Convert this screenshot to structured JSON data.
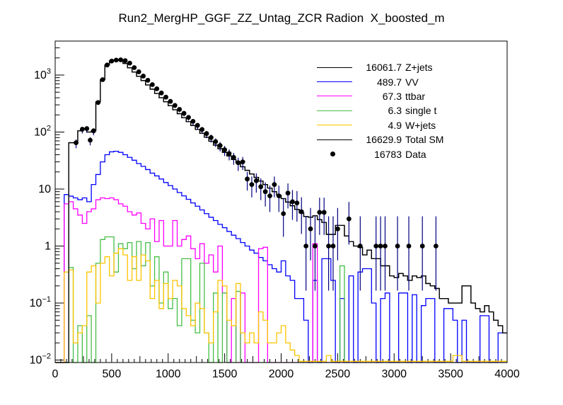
{
  "title": "Run2_MergHP_GGF_ZZ_Untag_ZCR Radion  X_boosted_m",
  "colors": {
    "zjets": "#000000",
    "vv": "#0000ff",
    "ttbar": "#ff00ff",
    "single_t": "#45bf45",
    "wjets": "#fcc400",
    "total_sm": "#000000",
    "data_marker": "#000000",
    "data_error_bar": "#000080",
    "frame": "#000000"
  },
  "chart_data": {
    "type": "bar",
    "subtype": "overlaid-step-histograms-log-y",
    "title": "Run2_MergHP_GGF_ZZ_Untag_ZCR Radion  X_boosted_m",
    "xlabel": "",
    "ylabel": "",
    "grid": false,
    "legend_position": "top-right-inside",
    "x_axis": {
      "min": 0,
      "max": 4000,
      "label_step": 500,
      "medium_tick_step": 250,
      "minor_tick_step": 50,
      "labels": [
        "0",
        "500",
        "1000",
        "1500",
        "2000",
        "2500",
        "3000",
        "3500",
        "4000"
      ]
    },
    "y_axis": {
      "scale": "log",
      "min": 0.009,
      "max": 4000,
      "tick_labels": [
        {
          "v": 1000,
          "base": "10",
          "exp": "3"
        },
        {
          "v": 100,
          "base": "10",
          "exp": "2"
        },
        {
          "v": 10,
          "base": "10",
          "exp": ""
        },
        {
          "v": 1,
          "base": "1",
          "exp": ""
        },
        {
          "v": 0.1,
          "base": "10",
          "exp": "−1"
        },
        {
          "v": 0.01,
          "base": "10",
          "exp": "−2"
        }
      ]
    },
    "bin_width": 40,
    "bin_start": 0,
    "series": [
      {
        "key": "zjets",
        "name": "Z+jets",
        "yield": "16061.7",
        "color": "#000000",
        "values": [
          0,
          0,
          0,
          65,
          65,
          105,
          115,
          100,
          105,
          340,
          830,
          1500,
          1780,
          1830,
          1820,
          1600,
          1340,
          1130,
          950,
          800,
          670,
          565,
          475,
          400,
          340,
          290,
          246,
          210,
          178,
          152,
          130,
          111,
          95,
          81,
          69,
          59,
          51,
          44,
          38,
          33,
          28.5,
          24.6,
          21.3,
          18.4,
          16,
          13.8,
          12,
          10.4,
          9,
          7.8,
          6.8,
          5.9,
          5.1,
          4.4,
          3.8,
          3.3,
          3.2,
          3.4,
          2.9,
          2.6,
          1.6,
          1.6,
          2.3,
          2.3,
          1.5,
          1.2,
          1.0,
          0.95,
          0.7,
          0.85,
          0.6,
          0.6,
          0.45,
          0.45,
          0.3,
          0.28,
          0.33,
          0.3,
          0.25,
          0.3,
          0.28,
          0.3,
          0.22,
          0.2,
          0.18,
          0.12,
          0.12,
          0.1,
          0.1,
          0.1,
          0.2,
          0.2,
          0.1,
          0.08,
          0.07,
          0.09,
          0.07,
          0.05,
          0.04,
          0.03
        ]
      },
      {
        "key": "vv",
        "name": "VV",
        "yield": "489.7",
        "color": "#0000ff",
        "values": [
          0,
          0,
          8,
          7.5,
          7,
          6.5,
          7,
          6,
          12,
          18,
          30,
          40,
          45,
          46,
          44,
          40,
          36,
          32,
          28,
          25,
          22,
          19,
          17,
          15,
          13,
          11.5,
          10,
          8.7,
          7.6,
          6.6,
          5.7,
          5,
          4.3,
          3.7,
          3.2,
          2.8,
          2.4,
          2.1,
          1.8,
          1.55,
          1.35,
          1.15,
          1,
          0.85,
          0.75,
          0.63,
          0.55,
          0.47,
          0.4,
          0.35,
          0.55,
          0.3,
          0.25,
          0.12,
          0.12,
          0.05,
          0,
          0.25,
          0,
          0.6,
          0.6,
          0.25,
          0,
          0.12,
          0,
          0.3,
          0,
          0.35,
          0.4,
          0.4,
          0.1,
          0,
          0.12,
          0.15,
          0,
          0,
          0.15,
          0.15,
          0,
          0.14,
          0,
          0.09,
          0.12,
          0.12,
          0,
          0,
          0.08,
          0.08,
          0.05,
          0,
          0.05,
          0,
          0,
          0,
          0.06,
          0.06,
          0,
          0,
          0.03,
          0.03
        ]
      },
      {
        "key": "ttbar",
        "name": "ttbar",
        "yield": "67.3",
        "color": "#ff00ff",
        "values": [
          0,
          0,
          5.5,
          6,
          4.5,
          3.5,
          2.5,
          4,
          4.5,
          6.5,
          7,
          6.8,
          7,
          6.5,
          5.5,
          5,
          4,
          3.5,
          3.8,
          2.5,
          2,
          3,
          1.2,
          2.8,
          1,
          1,
          2.8,
          1,
          1.3,
          1.5,
          0.9,
          0.6,
          1.1,
          0.5,
          0.7,
          0.35,
          1,
          0.15,
          0,
          0.12,
          0,
          0.15,
          0,
          0,
          0,
          0.9,
          0.95,
          0,
          0,
          0,
          0,
          0,
          0,
          0,
          0,
          0,
          0,
          1.1,
          0,
          0,
          0,
          0,
          0,
          0,
          0,
          0,
          0,
          0,
          0,
          0,
          0,
          0,
          0,
          0,
          0,
          0,
          0,
          0,
          0,
          0,
          0,
          0,
          0,
          0,
          0,
          0,
          0,
          0,
          0,
          0,
          0,
          0,
          0,
          0,
          0,
          0,
          0,
          0,
          0,
          0
        ]
      },
      {
        "key": "single_t",
        "name": "single t",
        "yield": "6.3",
        "color": "#45bf45",
        "values": [
          0,
          0,
          0,
          0.42,
          0,
          0.04,
          0,
          0.06,
          0,
          0.5,
          1.3,
          1.45,
          1.45,
          0.35,
          1.1,
          0.9,
          1.15,
          0.4,
          1.2,
          0.45,
          1.15,
          0.2,
          0.65,
          0.1,
          0.35,
          0.08,
          0.12,
          0.04,
          0.6,
          0.6,
          0.05,
          0.03,
          0.5,
          0.03,
          0,
          0.15,
          0,
          0.15,
          0,
          0,
          0.16,
          0,
          0,
          0,
          0,
          0,
          0,
          0,
          0,
          0,
          0,
          0,
          0,
          0,
          0,
          0,
          0,
          0,
          0,
          0,
          0,
          0,
          0,
          0.45,
          0,
          0,
          0,
          0,
          0,
          0,
          0,
          0,
          0,
          0,
          0,
          0,
          0,
          0,
          0,
          0,
          0,
          0,
          0,
          0,
          0,
          0,
          0,
          0,
          0,
          0,
          0,
          0,
          0,
          0,
          0,
          0,
          0,
          0,
          0,
          0
        ]
      },
      {
        "key": "wjets",
        "name": "W+jets",
        "yield": "4.9",
        "color": "#fcc400",
        "values": [
          0,
          0,
          0.35,
          0.38,
          0.02,
          0.03,
          0.04,
          0.35,
          0.45,
          0.1,
          0.5,
          0.65,
          0.3,
          0.75,
          0.9,
          0.7,
          0.25,
          0.65,
          0.25,
          0.7,
          0.55,
          0.12,
          0.25,
          0.08,
          0.22,
          0.12,
          0.25,
          0.2,
          0.08,
          0.06,
          0.04,
          0.1,
          0.08,
          0.03,
          0.02,
          0.07,
          0.25,
          0.2,
          0.05,
          0.04,
          0.22,
          0.03,
          0.02,
          0.03,
          0.02,
          0.07,
          0.05,
          0.02,
          0.02,
          0.03,
          0.04,
          0.02,
          0.015,
          0.012,
          0.0095,
          0.0095,
          0.0095,
          0.0095,
          0.0095,
          0.0095,
          0.012,
          0.0095,
          0.0095,
          0.0095,
          0.0095,
          0.0095,
          0.0095,
          0.0095,
          0.0095,
          0.0095,
          0.0095,
          0.0095,
          0.0095,
          0.0095,
          0.0095,
          0.0095,
          0.0095,
          0.0095,
          0.0095,
          0.0095,
          0.0095,
          0.0095,
          0.0095,
          0.0095,
          0.0095,
          0.0095,
          0.0095,
          0.0095,
          0.012,
          0.012,
          0.0095,
          0.0095,
          0.0095,
          0.0095,
          0.0095,
          0.0095,
          0.0095,
          0.0095,
          0.0095,
          0.0095
        ]
      },
      {
        "key": "total_sm",
        "name": "Total SM",
        "yield": "16629.9",
        "color": "#000000",
        "values": [
          0,
          0,
          0,
          65,
          65,
          105,
          115,
          100,
          105,
          340,
          830,
          1500,
          1780,
          1830,
          1820,
          1600,
          1340,
          1130,
          950,
          800,
          670,
          565,
          475,
          400,
          340,
          290,
          246,
          210,
          178,
          152,
          130,
          111,
          95,
          81,
          69,
          59,
          51,
          44,
          38,
          33,
          28.5,
          24.6,
          21.3,
          18.4,
          16,
          13.8,
          12,
          10.4,
          9,
          7.8,
          6.8,
          5.9,
          5.1,
          4.4,
          3.8,
          3.3,
          3.2,
          3.4,
          2.9,
          2.6,
          1.6,
          1.6,
          2.3,
          2.3,
          1.5,
          1.2,
          1.0,
          0.95,
          0.7,
          0.85,
          0.6,
          0.6,
          0.45,
          0.45,
          0.3,
          0.28,
          0.33,
          0.3,
          0.25,
          0.3,
          0.28,
          0.3,
          0.22,
          0.2,
          0.18,
          0.12,
          0.12,
          0.1,
          0.1,
          0.1,
          0.2,
          0.2,
          0.1,
          0.08,
          0.07,
          0.09,
          0.07,
          0.05,
          0.04,
          0.03
        ]
      }
    ],
    "data_points": {
      "name": "Data",
      "yield": "16783",
      "marker_color": "#000000",
      "error_bar_color": "#000080",
      "points": [
        [
          185,
          65
        ],
        [
          240,
          112
        ],
        [
          280,
          115
        ],
        [
          310,
          72
        ],
        [
          340,
          105
        ],
        [
          380,
          330
        ],
        [
          420,
          830
        ],
        [
          460,
          1500
        ],
        [
          500,
          1760
        ],
        [
          540,
          1830
        ],
        [
          580,
          1850
        ],
        [
          620,
          1790
        ],
        [
          660,
          1620
        ],
        [
          700,
          1350
        ],
        [
          740,
          1140
        ],
        [
          780,
          960
        ],
        [
          820,
          810
        ],
        [
          860,
          680
        ],
        [
          900,
          575
        ],
        [
          940,
          485
        ],
        [
          980,
          410
        ],
        [
          1020,
          345
        ],
        [
          1060,
          293
        ],
        [
          1100,
          250
        ],
        [
          1140,
          213
        ],
        [
          1180,
          181
        ],
        [
          1220,
          154
        ],
        [
          1260,
          131
        ],
        [
          1300,
          111
        ],
        [
          1340,
          94
        ],
        [
          1380,
          80
        ],
        [
          1420,
          68
        ],
        [
          1460,
          58
        ],
        [
          1500,
          49
        ],
        [
          1540,
          42
        ],
        [
          1580,
          36
        ],
        [
          1620,
          29
        ],
        [
          1660,
          30
        ],
        [
          1700,
          15
        ],
        [
          1740,
          12
        ],
        [
          1780,
          14
        ],
        [
          1820,
          11
        ],
        [
          1860,
          9
        ],
        [
          1900,
          7.6
        ],
        [
          1940,
          12
        ],
        [
          1980,
          7.6
        ],
        [
          2020,
          3.7
        ],
        [
          2060,
          8.5
        ],
        [
          2100,
          6
        ],
        [
          2140,
          5.7
        ],
        [
          2180,
          4
        ],
        [
          2220,
          1
        ],
        [
          2260,
          2
        ],
        [
          2300,
          1
        ],
        [
          2340,
          3.9
        ],
        [
          2380,
          3.9
        ],
        [
          2420,
          1
        ],
        [
          2460,
          1
        ],
        [
          2500,
          2
        ],
        [
          2600,
          3
        ],
        [
          2700,
          1
        ],
        [
          2840,
          1
        ],
        [
          2880,
          1
        ],
        [
          2920,
          1
        ],
        [
          3030,
          1
        ],
        [
          3130,
          1
        ],
        [
          3250,
          1
        ],
        [
          3370,
          1
        ]
      ]
    },
    "legend": [
      {
        "value": "16061.7",
        "label": "Z+jets",
        "color": "#000000",
        "marker": "line"
      },
      {
        "value": "489.7",
        "label": "VV",
        "color": "#0000ff",
        "marker": "line"
      },
      {
        "value": "67.3",
        "label": "ttbar",
        "color": "#ff00ff",
        "marker": "line"
      },
      {
        "value": "6.3",
        "label": "single t",
        "color": "#45bf45",
        "marker": "line"
      },
      {
        "value": "4.9",
        "label": "W+jets",
        "color": "#fcc400",
        "marker": "line"
      },
      {
        "value": "16629.9",
        "label": "Total SM",
        "color": "#000000",
        "marker": "line"
      },
      {
        "value": "16783",
        "label": "Data",
        "color": "#000000",
        "marker": "dot"
      }
    ]
  }
}
